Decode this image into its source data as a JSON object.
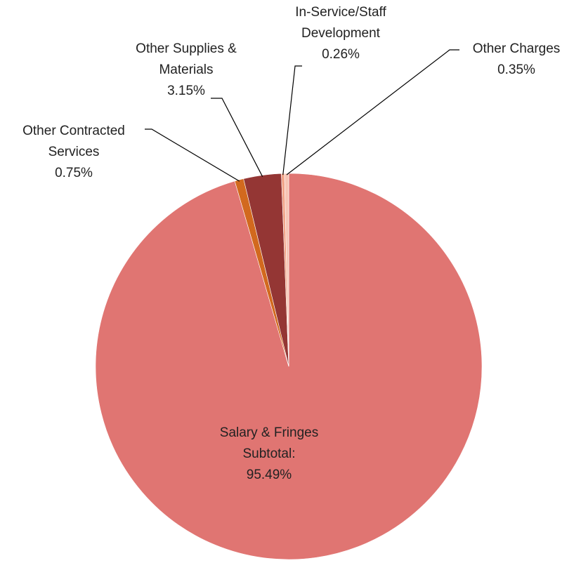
{
  "chart_data": {
    "type": "pie",
    "categories": [
      "Salary & Fringes Subtotal:",
      "Other Contracted Services",
      "Other Supplies & Materials",
      "In-Service/Staff Development",
      "Other Charges"
    ],
    "values": [
      95.49,
      0.75,
      3.15,
      0.26,
      0.35
    ],
    "value_labels": [
      "95.49%",
      "0.75%",
      "3.15%",
      "0.26%",
      "0.35%"
    ],
    "colors": [
      "#e07572",
      "#d2691e",
      "#943634",
      "#f2a488",
      "#f7c4b4"
    ]
  }
}
